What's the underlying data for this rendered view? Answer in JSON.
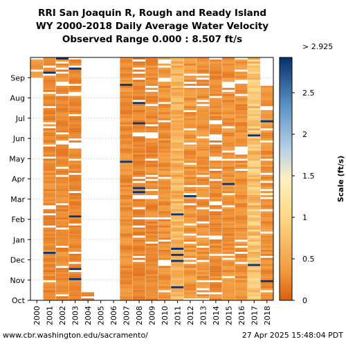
{
  "chart_data": {
    "type": "heatmap",
    "title": "RRI San Joaquin R, Rough and Ready Island",
    "subtitle": "WY 2000-2018 Daily Average Water Velocity",
    "subtitle2": "Observed Range 0.000 : 8.507 ft/s",
    "x_categories": [
      "2000",
      "2001",
      "2002",
      "2003",
      "2004",
      "2005",
      "2006",
      "2007",
      "2008",
      "2009",
      "2010",
      "2011",
      "2012",
      "2013",
      "2014",
      "2015",
      "2016",
      "2017",
      "2018"
    ],
    "y_months": [
      "Oct",
      "Nov",
      "Dec",
      "Jan",
      "Feb",
      "Mar",
      "Apr",
      "May",
      "Jun",
      "Jul",
      "Aug",
      "Sep"
    ],
    "colorbar": {
      "label": "Scale (ft/s)",
      "range": [
        0,
        2.925
      ],
      "ticks": [
        "0",
        "0.5",
        "1",
        "1.5",
        "2",
        "2.5"
      ],
      "top_label": "> 2.925"
    },
    "year_typical_velocity": [
      0.3,
      0.25,
      0.25,
      0.22,
      0.2,
      null,
      null,
      0.28,
      0.22,
      0.25,
      0.3,
      0.6,
      0.35,
      0.3,
      0.25,
      0.3,
      0.3,
      0.75,
      0.3
    ],
    "year_data_coverage": [
      [
        0.92,
        1.0
      ],
      [
        0.0,
        1.0
      ],
      [
        0.0,
        1.0
      ],
      [
        0.0,
        1.0
      ],
      [
        0.0,
        0.03
      ],
      [
        0.0,
        0.0
      ],
      [
        0.0,
        0.0
      ],
      [
        0.0,
        1.0
      ],
      [
        0.0,
        1.0
      ],
      [
        0.0,
        1.0
      ],
      [
        0.0,
        1.0
      ],
      [
        0.0,
        1.0
      ],
      [
        0.0,
        1.0
      ],
      [
        0.0,
        1.0
      ],
      [
        0.0,
        1.0
      ],
      [
        0.0,
        1.0
      ],
      [
        0.0,
        1.0
      ],
      [
        0.0,
        1.0
      ],
      [
        0.0,
        0.88
      ]
    ],
    "colors": {
      "low": "#d95f0e",
      "mid_low": "#f5a34a",
      "mid": "#fde09a",
      "mid_high": "#8fb8d8",
      "high": "#08306b"
    }
  },
  "footer": {
    "left": "www.cbr.washington.edu/sacramento/",
    "right": "27 Apr 2025 15:48:04 PDT"
  }
}
